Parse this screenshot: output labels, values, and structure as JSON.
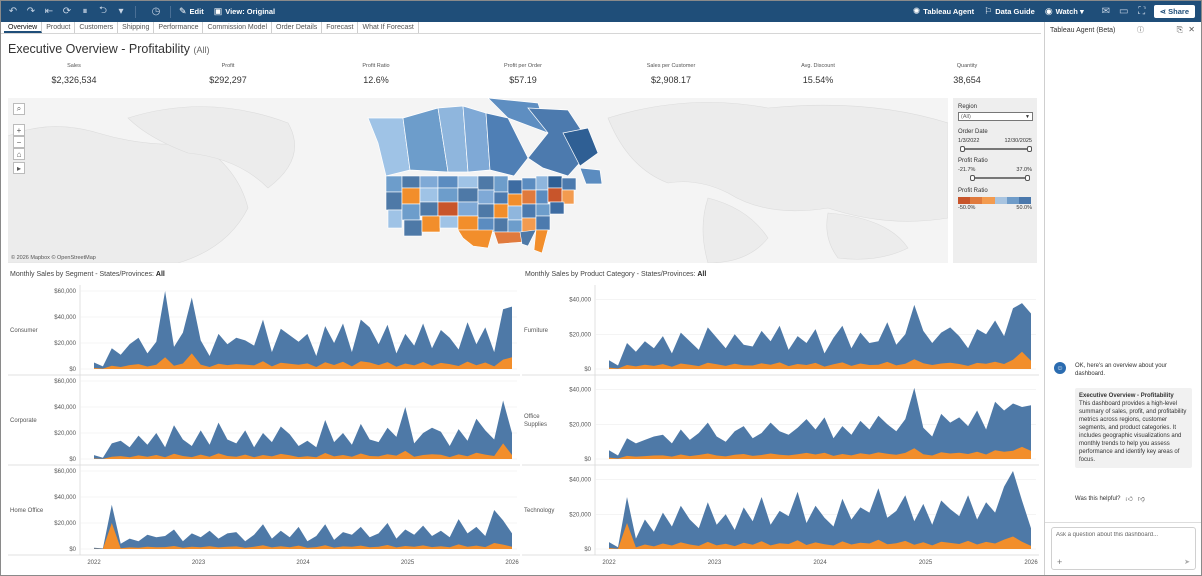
{
  "toolbar": {
    "edit_label": "Edit",
    "view_label": "View: Original",
    "agent_label": "Tableau Agent",
    "guide_label": "Data Guide",
    "watch_label": "Watch",
    "share_label": "Share"
  },
  "tabs": [
    "Overview",
    "Product",
    "Customers",
    "Shipping",
    "Performance",
    "Commission Model",
    "Order Details",
    "Forecast",
    "What If Forecast"
  ],
  "title": {
    "main": "Executive Overview - Profitability",
    "sub": "(All)"
  },
  "kpis": [
    {
      "label": "Sales",
      "value": "$2,326,534"
    },
    {
      "label": "Profit",
      "value": "$292,297"
    },
    {
      "label": "Profit Ratio",
      "value": "12.6%"
    },
    {
      "label": "Profit per Order",
      "value": "$57.19"
    },
    {
      "label": "Sales per Customer",
      "value": "$2,908.17"
    },
    {
      "label": "Avg. Discount",
      "value": "15.54%"
    },
    {
      "label": "Quantity",
      "value": "38,654"
    }
  ],
  "map": {
    "attribution": "© 2026 Mapbox  © OpenStreetMap"
  },
  "filters": {
    "region_title": "Region",
    "region_value": "(All)",
    "order_date_title": "Order Date",
    "order_date_start": "1/3/2022",
    "order_date_end": "12/30/2025",
    "profit_ratio_title": "Profit Ratio",
    "profit_ratio_min": "-21.7%",
    "profit_ratio_max": "37.0%",
    "legend_title": "Profit Ratio",
    "legend_min": "-50.0%",
    "legend_max": "50.0%",
    "legend_colors": [
      "#c8552b",
      "#e07a3d",
      "#f39b4f",
      "#a8c4e0",
      "#6f9cc9",
      "#4a78ac"
    ]
  },
  "segment_chart": {
    "title_prefix": "Monthly Sales by Segment - States/Provinces:",
    "title_value": "All"
  },
  "category_chart": {
    "title_prefix": "Monthly Sales by Product Category - States/Provinces:",
    "title_value": "All"
  },
  "agent": {
    "header": "Tableau Agent (Beta)",
    "intro": "OK, here's an overview about your dashboard.",
    "card_title": "Executive Overview - Profitability",
    "card_body": "This dashboard provides a high-level summary of sales, profit, and profitability metrics across regions, customer segments, and product categories. It includes geographic visualizations and monthly trends to help you assess performance and identify key areas of focus.",
    "helpful": "Was this helpful?",
    "placeholder": "Ask a question about this dashboard..."
  },
  "chart_data": [
    {
      "type": "area",
      "title": "Monthly Sales by Segment - States/Provinces: All",
      "x_ticks": [
        "2022",
        "2023",
        "2024",
        "2025",
        "2026"
      ],
      "colors": {
        "sales": "#4e79a7",
        "profit": "#f28e2b"
      },
      "rows": [
        {
          "name": "Consumer",
          "ylim": [
            0,
            60000
          ],
          "y_ticks": [
            "$60,000",
            "$40,000",
            "$20,000",
            "$0"
          ],
          "sales": [
            5000,
            2000,
            16000,
            11000,
            19000,
            24000,
            12000,
            21000,
            62000,
            17000,
            28000,
            55000,
            22000,
            10000,
            27000,
            19000,
            24000,
            22000,
            18000,
            38000,
            13000,
            31000,
            26000,
            21000,
            27000,
            10000,
            33000,
            20000,
            35000,
            13000,
            38000,
            32000,
            19000,
            34000,
            12000,
            27000,
            18000,
            35000,
            16000,
            30000,
            24000,
            15000,
            36000,
            19000,
            32000,
            13000,
            46000,
            48000
          ],
          "profit": [
            800,
            300,
            2500,
            1500,
            3000,
            3800,
            1900,
            3300,
            9000,
            2500,
            4200,
            12000,
            3400,
            1500,
            4000,
            3000,
            3800,
            3400,
            2800,
            6000,
            2000,
            4800,
            4000,
            3200,
            4300,
            1500,
            5200,
            3100,
            5500,
            2000,
            6000,
            5000,
            3000,
            5300,
            1800,
            4200,
            2800,
            5400,
            2500,
            4700,
            3800,
            2300,
            5700,
            2900,
            5000,
            2000,
            7200,
            9000
          ]
        },
        {
          "name": "Corporate",
          "ylim": [
            0,
            60000
          ],
          "y_ticks": [
            "$60,000",
            "$40,000",
            "$20,000",
            "$0"
          ],
          "sales": [
            3000,
            1000,
            12000,
            14000,
            9000,
            18000,
            11000,
            20000,
            9000,
            26000,
            15000,
            10000,
            22000,
            11000,
            28000,
            15000,
            12000,
            22000,
            9000,
            20000,
            13000,
            25000,
            19000,
            10000,
            14000,
            9000,
            30000,
            13000,
            20000,
            11000,
            27000,
            15000,
            13000,
            24000,
            17000,
            40000,
            12000,
            20000,
            24000,
            21000,
            10000,
            23000,
            14000,
            31000,
            22000,
            15000,
            45000,
            20000
          ],
          "profit": [
            400,
            100,
            1800,
            2200,
            1400,
            2800,
            1700,
            3100,
            1400,
            4000,
            2300,
            1500,
            3400,
            1700,
            4300,
            2300,
            1800,
            3400,
            1400,
            3100,
            2000,
            3900,
            2900,
            1500,
            2100,
            1400,
            4600,
            2000,
            3100,
            1700,
            4200,
            2300,
            2000,
            3700,
            2600,
            6200,
            1800,
            3100,
            3700,
            3200,
            1500,
            3500,
            2100,
            4800,
            3400,
            2300,
            12000,
            3100
          ]
        },
        {
          "name": "Home Office",
          "ylim": [
            0,
            60000
          ],
          "y_ticks": [
            "$60,000",
            "$40,000",
            "$20,000",
            "$0"
          ],
          "sales": [
            1000,
            500,
            34000,
            4000,
            8000,
            6000,
            11000,
            9000,
            10000,
            15000,
            6000,
            12000,
            9000,
            14000,
            8000,
            12000,
            13000,
            6000,
            11000,
            19000,
            8000,
            14000,
            9000,
            17000,
            6000,
            10000,
            19000,
            7000,
            13000,
            11000,
            17000,
            9000,
            12000,
            20000,
            8000,
            15000,
            11000,
            18000,
            10000,
            14000,
            9000,
            23000,
            12000,
            17000,
            10000,
            30000,
            22000,
            12000
          ],
          "profit": [
            150,
            80,
            20000,
            600,
            1200,
            900,
            1700,
            1400,
            1500,
            2300,
            900,
            1800,
            1400,
            2100,
            1200,
            1800,
            2000,
            900,
            1700,
            2900,
            1200,
            2100,
            1400,
            2600,
            900,
            1500,
            2900,
            1100,
            2000,
            1700,
            2600,
            1400,
            1800,
            3100,
            1200,
            2300,
            1700,
            2800,
            1500,
            2100,
            1400,
            3500,
            1800,
            2600,
            1500,
            4600,
            3400,
            1800
          ]
        }
      ]
    },
    {
      "type": "area",
      "title": "Monthly Sales by Product Category - States/Provinces: All",
      "x_ticks": [
        "2022",
        "2023",
        "2024",
        "2025",
        "2026"
      ],
      "colors": {
        "sales": "#4e79a7",
        "profit": "#f28e2b"
      },
      "rows": [
        {
          "name": "Furniture",
          "ylim": [
            0,
            45000
          ],
          "y_ticks": [
            "$40,000",
            "$20,000",
            "$0"
          ],
          "sales": [
            5000,
            2000,
            15000,
            10000,
            16000,
            12000,
            19000,
            9000,
            21000,
            16000,
            11000,
            24000,
            18000,
            12000,
            20000,
            14000,
            13000,
            22000,
            16000,
            25000,
            11000,
            19000,
            15000,
            23000,
            9000,
            18000,
            25000,
            12000,
            21000,
            15000,
            16000,
            27000,
            14000,
            20000,
            37000,
            22000,
            15000,
            21000,
            24000,
            19000,
            12000,
            23000,
            20000,
            28000,
            19000,
            35000,
            38000,
            32000
          ],
          "profit": [
            800,
            300,
            2300,
            1500,
            2400,
            1800,
            2800,
            1300,
            3200,
            2400,
            1700,
            3600,
            2700,
            1800,
            3000,
            2100,
            2000,
            3300,
            2400,
            3800,
            1700,
            2900,
            2300,
            3500,
            1400,
            2700,
            3800,
            1800,
            3200,
            2300,
            2400,
            4100,
            2100,
            3000,
            5600,
            3300,
            2300,
            3200,
            3600,
            2900,
            1800,
            3500,
            3000,
            4200,
            2900,
            5300,
            10000,
            4800
          ]
        },
        {
          "name": "Office Supplies",
          "ylim": [
            0,
            45000
          ],
          "y_ticks": [
            "$40,000",
            "$20,000",
            "$0"
          ],
          "sales": [
            5000,
            2000,
            12000,
            9000,
            11000,
            13000,
            14000,
            9000,
            17000,
            11000,
            15000,
            21000,
            13000,
            10000,
            16000,
            19000,
            12000,
            15000,
            21000,
            16000,
            14000,
            18000,
            23000,
            17000,
            24000,
            12000,
            19000,
            14000,
            22000,
            17000,
            25000,
            20000,
            16000,
            23000,
            41000,
            18000,
            13000,
            26000,
            21000,
            24000,
            19000,
            28000,
            17000,
            33000,
            28000,
            32000,
            30000,
            31000
          ],
          "profit": [
            800,
            300,
            1800,
            1400,
            1700,
            2000,
            2100,
            1400,
            2600,
            1700,
            2300,
            3200,
            2000,
            1500,
            2400,
            2900,
            1800,
            2300,
            3200,
            2400,
            2100,
            2700,
            3500,
            2600,
            3600,
            1800,
            2900,
            2100,
            3300,
            2600,
            3800,
            3000,
            2400,
            3500,
            6200,
            2700,
            2000,
            3900,
            3200,
            3600,
            2900,
            4200,
            2600,
            5000,
            4200,
            4800,
            7000,
            4700
          ]
        },
        {
          "name": "Technology",
          "ylim": [
            0,
            45000
          ],
          "y_ticks": [
            "$40,000",
            "$20,000",
            "$0"
          ],
          "sales": [
            4000,
            1000,
            30000,
            6000,
            17000,
            10000,
            21000,
            13000,
            25000,
            17000,
            12000,
            27000,
            14000,
            20000,
            11000,
            24000,
            16000,
            30000,
            14000,
            22000,
            19000,
            33000,
            15000,
            25000,
            18000,
            13000,
            29000,
            17000,
            24000,
            21000,
            35000,
            18000,
            22000,
            31000,
            16000,
            26000,
            14000,
            28000,
            23000,
            19000,
            31000,
            17000,
            27000,
            21000,
            36000,
            48000,
            28000,
            12000
          ],
          "profit": [
            600,
            150,
            15000,
            900,
            2600,
            1500,
            3200,
            2000,
            3800,
            2600,
            1800,
            4100,
            2100,
            3000,
            1700,
            3600,
            2400,
            4500,
            2100,
            3300,
            2900,
            5000,
            2300,
            3800,
            2700,
            2000,
            4400,
            2600,
            3600,
            3200,
            5300,
            2700,
            3300,
            4700,
            2400,
            3900,
            2100,
            4200,
            3500,
            2900,
            4700,
            2600,
            4100,
            3200,
            5400,
            7200,
            4200,
            1800
          ]
        }
      ]
    }
  ]
}
